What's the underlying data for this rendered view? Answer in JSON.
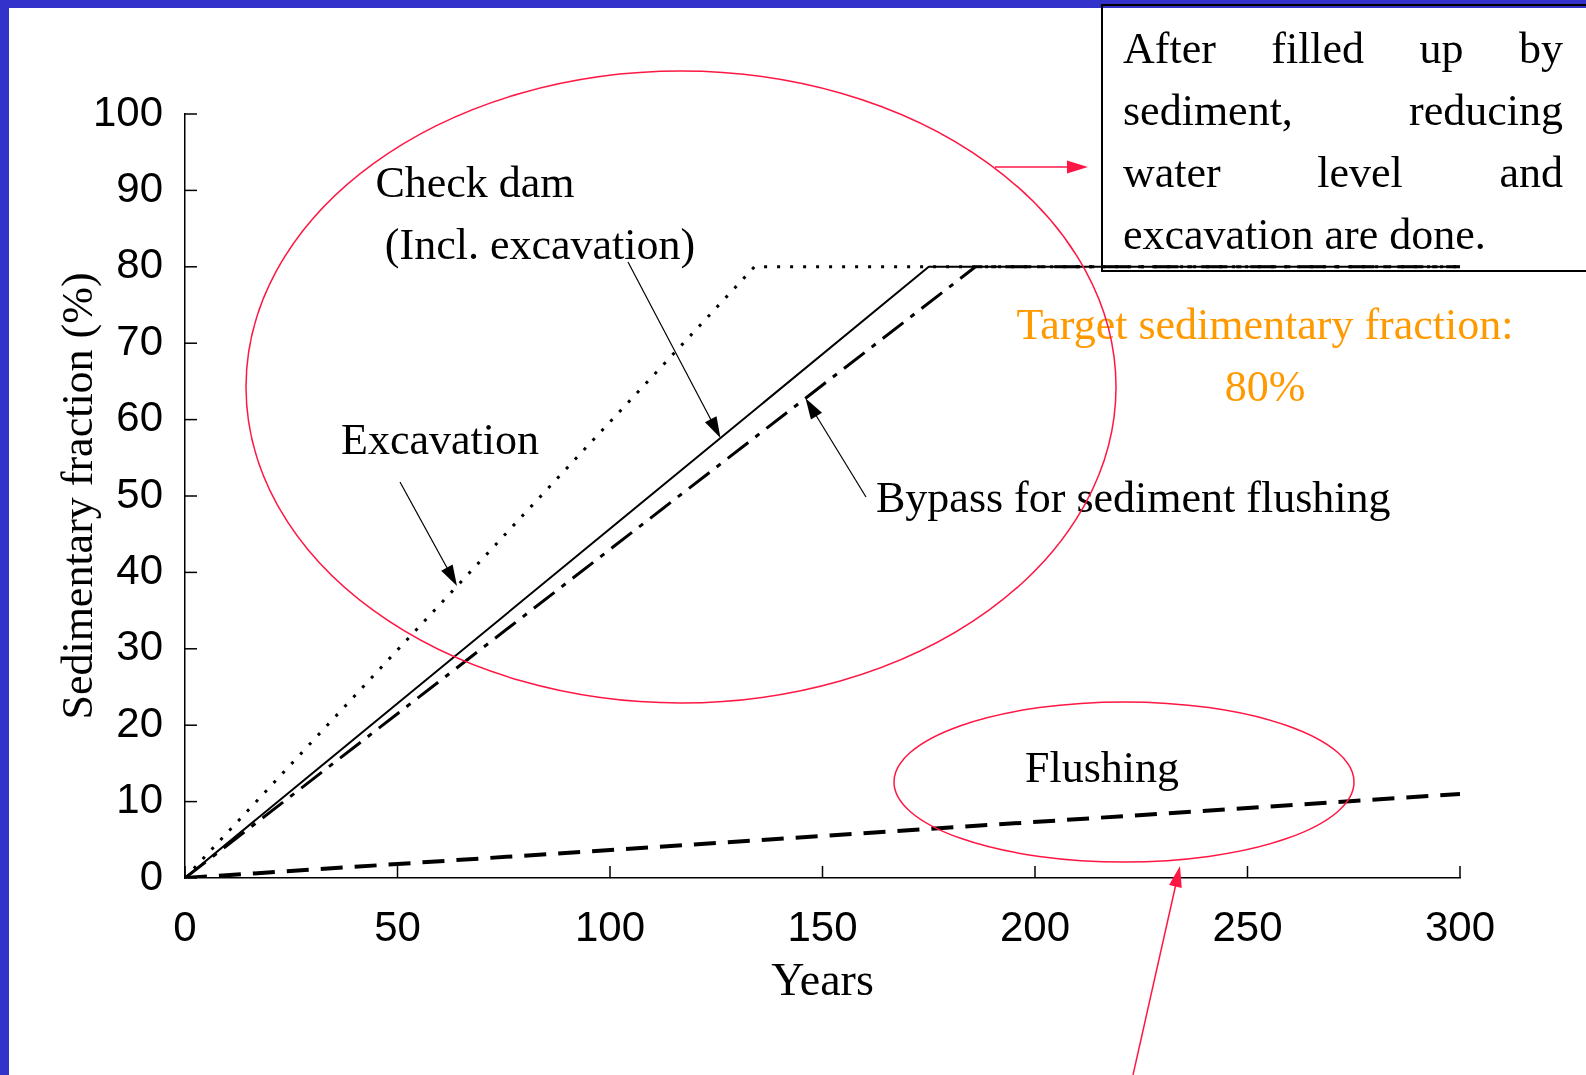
{
  "chart_data": {
    "type": "line",
    "xlabel": "Years",
    "ylabel": "Sedimentary fraction (%)",
    "xlim": [
      0,
      300
    ],
    "xticks": [
      0,
      50,
      100,
      150,
      200,
      250,
      300
    ],
    "ylim": [
      0,
      100
    ],
    "yticks": [
      0,
      10,
      20,
      30,
      40,
      50,
      60,
      70,
      80,
      90,
      100
    ],
    "grid": false,
    "legend": false,
    "marker": "none",
    "series": [
      {
        "name": "Excavation",
        "color": "#000000",
        "line_style": "dotted",
        "x": [
          0,
          134,
          300
        ],
        "values": [
          0,
          80,
          80
        ]
      },
      {
        "name": "Check dam (Incl. excavation)",
        "color": "#000000",
        "line_style": "solid",
        "x": [
          0,
          175,
          300
        ],
        "values": [
          0,
          80,
          80
        ]
      },
      {
        "name": "Bypass for sediment flushing",
        "color": "#000000",
        "line_style": "dashdot",
        "x": [
          0,
          186,
          300
        ],
        "values": [
          0,
          80,
          80
        ]
      },
      {
        "name": "Flushing",
        "color": "#000000",
        "line_style": "dashed",
        "x": [
          0,
          300
        ],
        "values": [
          0,
          11
        ]
      }
    ],
    "annotations": [
      "After filled up by sediment, reducing water level and excavation are done.",
      "Target sedimentary fraction: 80%"
    ]
  }
}
